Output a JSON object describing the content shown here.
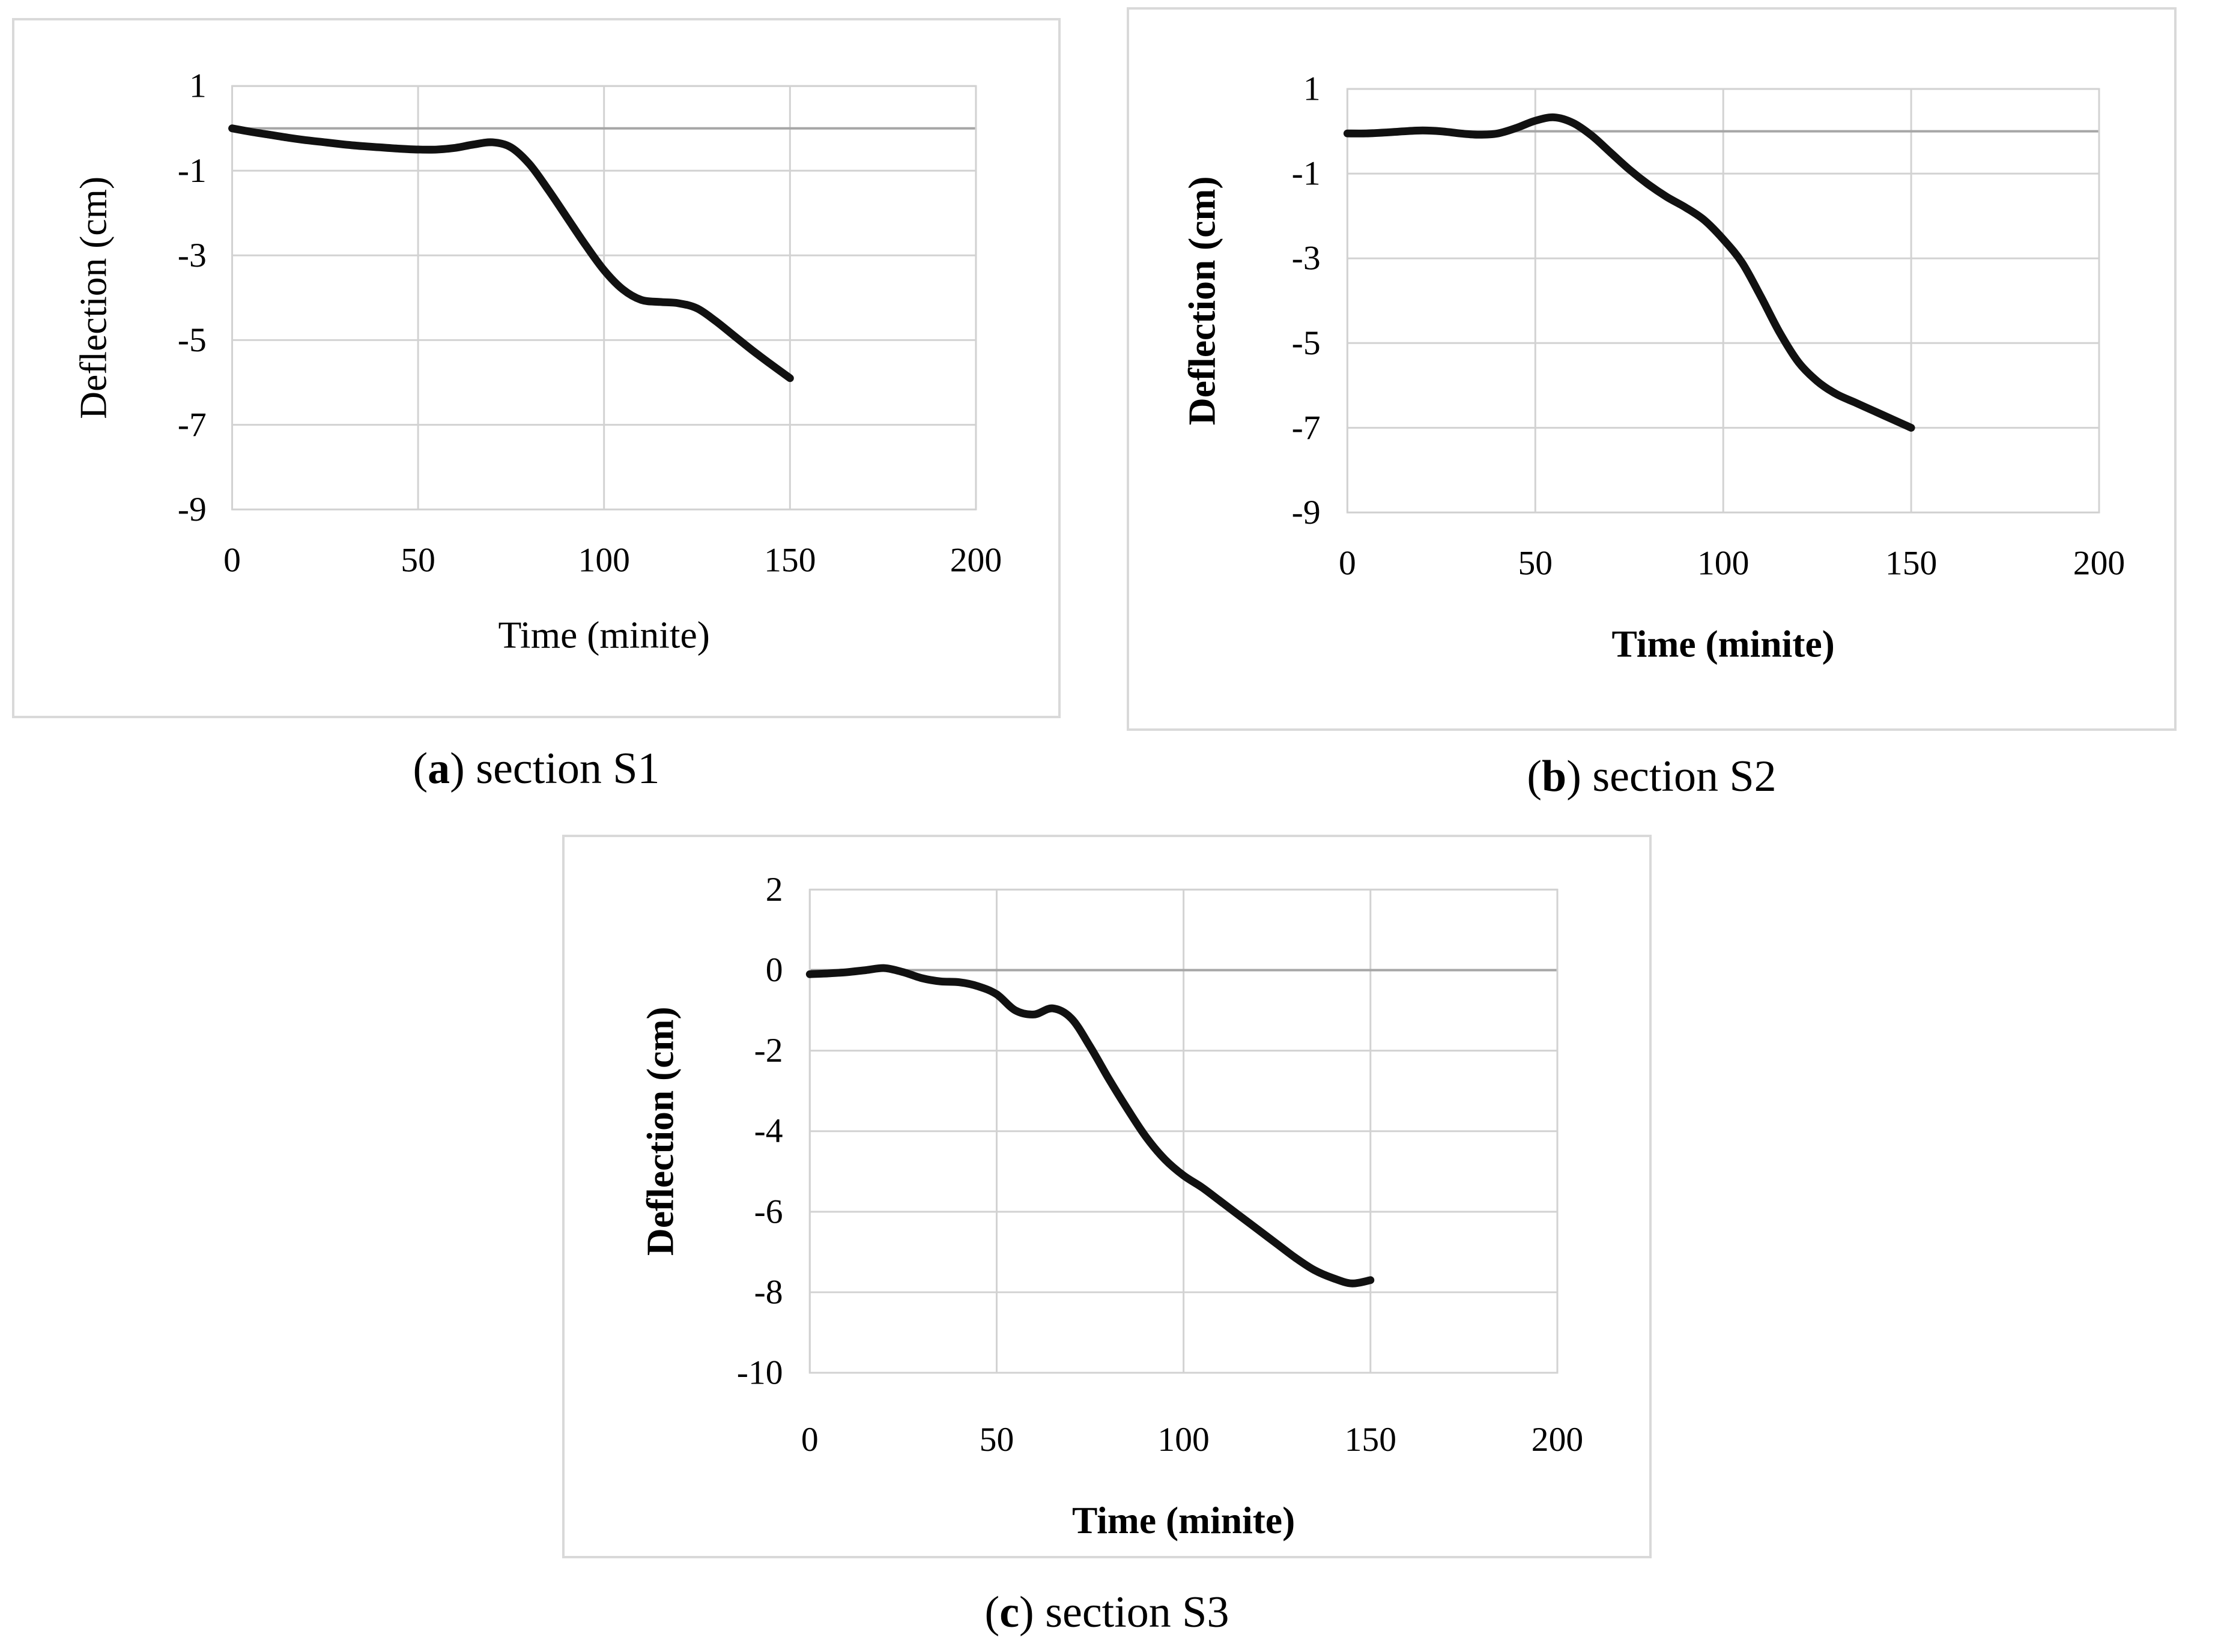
{
  "theme": {
    "background": "#ffffff",
    "text": "#000000",
    "curve": "#111111",
    "grid": "#d2d2d2",
    "axis_zero": "#a6a6a6",
    "panel_border": "#d9d9d9"
  },
  "captions": [
    {
      "open": "(",
      "letter": "a",
      "label": ") section S1"
    },
    {
      "open": "(",
      "letter": "b",
      "label": ") section S2"
    },
    {
      "open": "(",
      "letter": "c",
      "label": ") section S3"
    }
  ],
  "chart_data": [
    {
      "type": "line",
      "name": "section S1",
      "xlabel": "Time (minite)",
      "ylabel": "Deflection (cm)",
      "axis_title_weight": "normal",
      "legend": "none",
      "grid": true,
      "xlim": [
        0,
        200
      ],
      "ylim": [
        -9,
        1
      ],
      "xticks": [
        0,
        50,
        100,
        150,
        200
      ],
      "yticks": [
        1,
        -1,
        -3,
        -5,
        -7,
        -9
      ],
      "axis_line_y": 0,
      "x": [
        0,
        5,
        10,
        15,
        20,
        25,
        30,
        35,
        40,
        45,
        50,
        55,
        60,
        65,
        70,
        75,
        80,
        85,
        90,
        95,
        100,
        105,
        110,
        115,
        120,
        125,
        130,
        135,
        140,
        145,
        150
      ],
      "series": [
        {
          "name": "deflection",
          "values": [
            0.0,
            -0.08,
            -0.15,
            -0.22,
            -0.28,
            -0.33,
            -0.38,
            -0.42,
            -0.45,
            -0.48,
            -0.5,
            -0.5,
            -0.46,
            -0.38,
            -0.33,
            -0.45,
            -0.85,
            -1.45,
            -2.1,
            -2.75,
            -3.35,
            -3.8,
            -4.05,
            -4.1,
            -4.13,
            -4.25,
            -4.55,
            -4.9,
            -5.25,
            -5.58,
            -5.9
          ]
        }
      ]
    },
    {
      "type": "line",
      "name": "section S2",
      "xlabel": "Time (minite)",
      "ylabel": "Deflection (cm)",
      "axis_title_weight": "bold",
      "legend": "none",
      "grid": true,
      "xlim": [
        0,
        200
      ],
      "ylim": [
        -9,
        1
      ],
      "xticks": [
        0,
        50,
        100,
        150,
        200
      ],
      "yticks": [
        1,
        -1,
        -3,
        -5,
        -7,
        -9
      ],
      "axis_line_y": 0,
      "x": [
        0,
        5,
        10,
        15,
        20,
        25,
        30,
        35,
        40,
        45,
        50,
        55,
        60,
        65,
        70,
        75,
        80,
        85,
        90,
        95,
        100,
        105,
        110,
        115,
        120,
        125,
        130,
        135,
        140,
        145,
        150
      ],
      "series": [
        {
          "name": "deflection",
          "values": [
            -0.05,
            -0.05,
            -0.03,
            0.0,
            0.02,
            0.0,
            -0.05,
            -0.08,
            -0.05,
            0.08,
            0.25,
            0.33,
            0.2,
            -0.1,
            -0.5,
            -0.9,
            -1.25,
            -1.55,
            -1.8,
            -2.1,
            -2.55,
            -3.1,
            -3.9,
            -4.75,
            -5.45,
            -5.9,
            -6.2,
            -6.4,
            -6.6,
            -6.8,
            -7.0
          ]
        }
      ]
    },
    {
      "type": "line",
      "name": "section S3",
      "xlabel": "Time (minite)",
      "ylabel": "Deflection (cm)",
      "axis_title_weight": "bold",
      "legend": "none",
      "grid": true,
      "xlim": [
        0,
        200
      ],
      "ylim": [
        -10,
        2
      ],
      "xticks": [
        0,
        50,
        100,
        150,
        200
      ],
      "yticks": [
        2,
        0,
        -2,
        -4,
        -6,
        -8,
        -10
      ],
      "axis_line_y": 0,
      "x": [
        0,
        5,
        10,
        15,
        20,
        25,
        30,
        35,
        40,
        45,
        50,
        55,
        60,
        65,
        70,
        75,
        80,
        85,
        90,
        95,
        100,
        105,
        110,
        115,
        120,
        125,
        130,
        135,
        140,
        145,
        150
      ],
      "series": [
        {
          "name": "deflection",
          "values": [
            -0.1,
            -0.08,
            -0.05,
            0.0,
            0.05,
            -0.05,
            -0.2,
            -0.28,
            -0.3,
            -0.4,
            -0.6,
            -1.0,
            -1.1,
            -0.95,
            -1.2,
            -1.9,
            -2.7,
            -3.45,
            -4.15,
            -4.7,
            -5.1,
            -5.4,
            -5.75,
            -6.1,
            -6.45,
            -6.8,
            -7.15,
            -7.45,
            -7.65,
            -7.78,
            -7.7
          ]
        }
      ]
    }
  ]
}
